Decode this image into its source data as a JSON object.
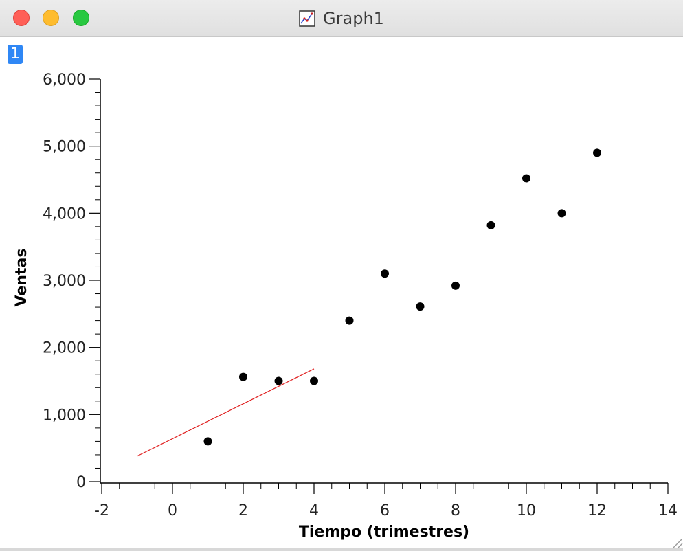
{
  "window": {
    "title": "Graph1",
    "badge": "1"
  },
  "chart_data": {
    "type": "scatter",
    "xlabel": "Tiempo (trimestres)",
    "ylabel": "Ventas",
    "xlim": [
      -2,
      14
    ],
    "ylim": [
      0,
      6000
    ],
    "x_ticks": [
      -2,
      0,
      2,
      4,
      6,
      8,
      10,
      12,
      14
    ],
    "x_tick_labels": [
      "-2",
      "0",
      "2",
      "4",
      "6",
      "8",
      "10",
      "12",
      "14"
    ],
    "y_ticks": [
      0,
      1000,
      2000,
      3000,
      4000,
      5000,
      6000
    ],
    "y_tick_labels": [
      "0",
      "1,000",
      "2,000",
      "3,000",
      "4,000",
      "5,000",
      "6,000"
    ],
    "series": [
      {
        "x": [
          1,
          2,
          3,
          4,
          5,
          6,
          7,
          8,
          9,
          10,
          11,
          12
        ],
        "y": [
          600,
          1560,
          1500,
          1500,
          2400,
          3100,
          2610,
          2920,
          3820,
          4520,
          4000,
          4900
        ],
        "color": "#000000",
        "marker": "filled-circle"
      }
    ],
    "line": {
      "x": [
        -1,
        4
      ],
      "y": [
        380,
        1680
      ],
      "color": "#e02020"
    },
    "grid": false,
    "legend": "none"
  }
}
